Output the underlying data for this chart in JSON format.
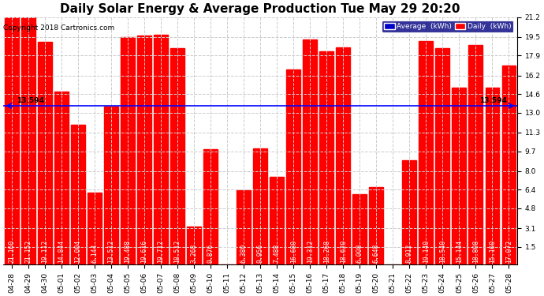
{
  "title": "Daily Solar Energy & Average Production Tue May 29 20:20",
  "copyright": "Copyright 2018 Cartronics.com",
  "average_value": 13.594,
  "bar_color": "#FF0000",
  "average_line_color": "#0000FF",
  "background_color": "#FFFFFF",
  "plot_bg_color": "#FFFFFF",
  "categories": [
    "04-28",
    "04-29",
    "04-30",
    "05-01",
    "05-02",
    "05-03",
    "05-04",
    "05-05",
    "05-06",
    "05-07",
    "05-08",
    "05-09",
    "05-10",
    "05-11",
    "05-12",
    "05-13",
    "05-14",
    "05-15",
    "05-16",
    "05-17",
    "05-18",
    "05-19",
    "05-20",
    "05-21",
    "05-22",
    "05-23",
    "05-24",
    "05-25",
    "05-26",
    "05-27",
    "05-28"
  ],
  "values": [
    21.16,
    21.152,
    19.112,
    14.844,
    12.004,
    6.144,
    13.512,
    19.488,
    19.616,
    19.712,
    18.512,
    3.268,
    9.876,
    0.0,
    6.38,
    9.956,
    7.488,
    16.68,
    19.312,
    18.268,
    18.62,
    6.008,
    6.648,
    0.0,
    8.912,
    19.14,
    18.54,
    15.144,
    18.808,
    15.16,
    17.072
  ],
  "ylim": [
    0,
    21.2
  ],
  "yticks": [
    1.5,
    3.1,
    4.8,
    6.4,
    8.0,
    9.7,
    11.3,
    13.0,
    14.6,
    16.2,
    17.9,
    19.5,
    21.2
  ],
  "legend_average_label": "Average  (kWh)",
  "legend_daily_label": "Daily  (kWh)",
  "avg_label": "13.594",
  "grid_color": "#CCCCCC",
  "title_fontsize": 11,
  "tick_fontsize": 6.5,
  "bar_label_fontsize": 5.8,
  "copyright_fontsize": 6.5
}
